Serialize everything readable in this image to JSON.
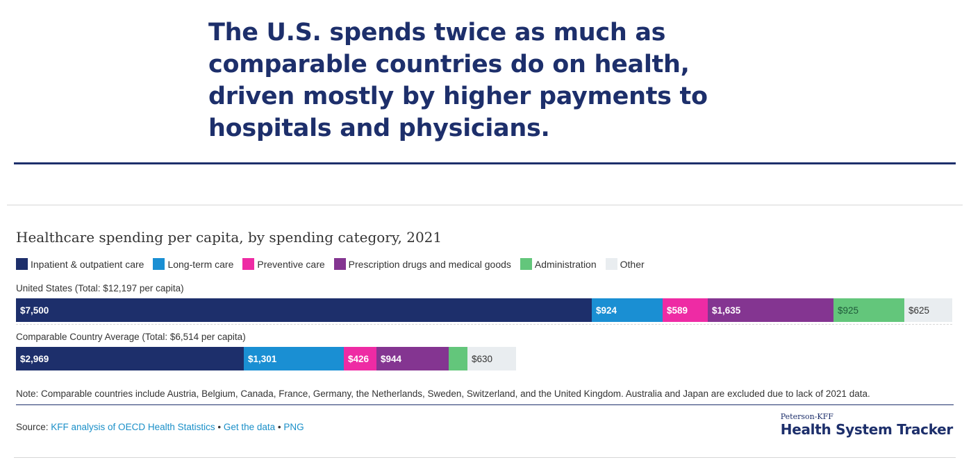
{
  "headline": "The U.S. spends twice as much as comparable countries do on health, driven mostly by higher payments to hospitals and physicians.",
  "chart_data": {
    "type": "bar",
    "orientation": "horizontal-stacked",
    "title": "Healthcare spending per capita, by spending category, 2021",
    "categories": [
      "United States (Total: $12,197 per capita)",
      "Comparable Country Average (Total: $6,514 per capita)"
    ],
    "series": [
      {
        "name": "Inpatient & outpatient care",
        "color": "#1d2f6b",
        "values": [
          7500,
          2969
        ],
        "labels": [
          "$7,500",
          "$2,969"
        ]
      },
      {
        "name": "Long-term care",
        "color": "#1a8fd3",
        "values": [
          924,
          1301
        ],
        "labels": [
          "$924",
          "$1,301"
        ]
      },
      {
        "name": "Preventive care",
        "color": "#ee2ba4",
        "values": [
          589,
          426
        ],
        "labels": [
          "$589",
          "$426"
        ]
      },
      {
        "name": "Prescription drugs and medical goods",
        "color": "#843591",
        "values": [
          1635,
          944
        ],
        "labels": [
          "$1,635",
          "$944"
        ]
      },
      {
        "name": "Administration",
        "color": "#63c67b",
        "values": [
          925,
          244
        ],
        "labels": [
          "$925",
          ""
        ]
      },
      {
        "name": "Other",
        "color": "#e9edf0",
        "values": [
          625,
          630
        ],
        "labels": [
          "$625",
          "$630"
        ]
      }
    ],
    "xlim": [
      0,
      12197
    ],
    "legend_position": "top-left",
    "grid": false
  },
  "note": "Note: Comparable countries include Austria, Belgium, Canada, France, Germany, the Netherlands, Sweden, Switzerland, and the United Kingdom. Australia and Japan are excluded due to lack of 2021 data.",
  "source": {
    "prefix": "Source: ",
    "link1": "KFF analysis of OECD Health Statistics",
    "sep1": " • ",
    "link2": "Get the data",
    "sep2": " • ",
    "link3": "PNG"
  },
  "brand": {
    "top": "Peterson-KFF",
    "main": "Health System Tracker"
  }
}
